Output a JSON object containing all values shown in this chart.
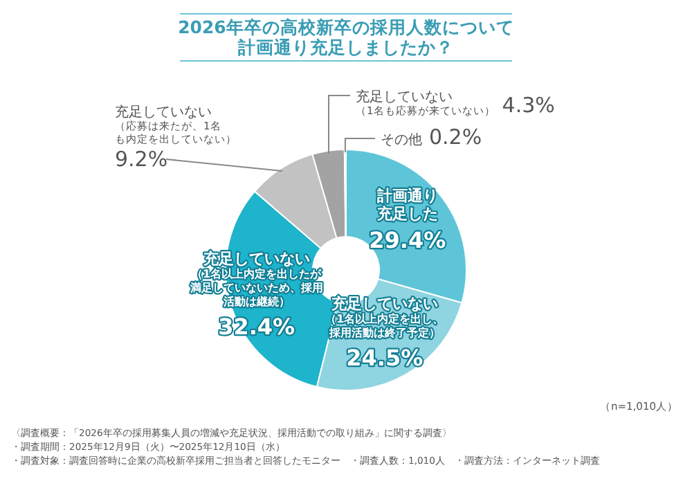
{
  "chart_data": {
    "type": "donut",
    "title": "2026年卒の高校新卒の採用人数について計画通り充足しましたか？",
    "categories": [
      "計画通り充足した",
      "充足していない（1名以上内定を出し、採用活動は終了予定）",
      "充足していない（1名以上内定を出したが満足していないため、採用活動は継続）",
      "充足していない（応募は来たが、1名も内定を出していない）",
      "充足していない（1名も応募が来ていない）",
      "その他"
    ],
    "values": [
      29.4,
      24.5,
      32.4,
      9.2,
      4.3,
      0.2
    ],
    "value_labels": [
      "29.4%",
      "24.5%",
      "32.4%",
      "9.2%",
      "4.3%",
      "0.2%"
    ],
    "colors": [
      "#5ec5d8",
      "#8fd4e1",
      "#1db4cc",
      "#c2c2c2",
      "#a3a3a3",
      "#7a7a7a"
    ],
    "annotations": [
      "（n=1,010人）",
      "〈調査概要：「2026年卒の採用募集人員の増減や充足状況、採用活動での取り組み」に関する調査〉",
      "・調査期間：2025年12月9日（火）〜2025年12月10日（水）",
      "・調査対象：調査回答時に企業の高校新卒採用ご担当者と回答したモニター　・調査人数：1,010人　・調査方法：インターネット調査"
    ]
  }
}
